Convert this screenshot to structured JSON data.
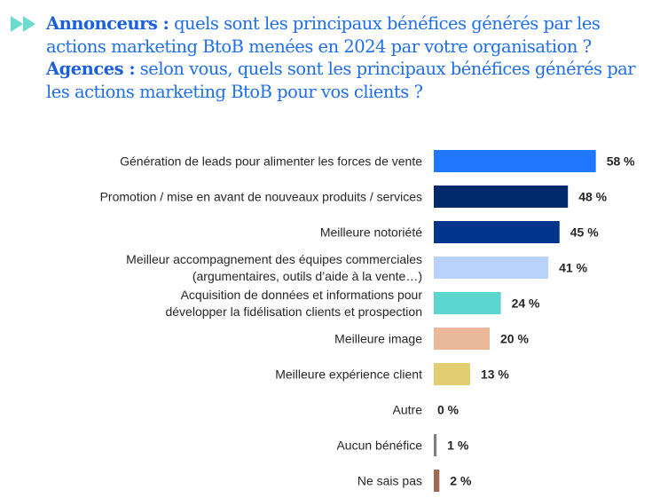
{
  "title": {
    "line1_bold": "Annonceurs :",
    "line1_rest": " quels sont les principaux bénéfices générés par les actions marketing BtoB menées en 2024 par votre organisation ?",
    "line2_bold": "Agences :",
    "line2_rest": " selon vous, quels sont les principaux bénéfices générés par les actions marketing BtoB pour vos clients ?",
    "icon": "double-chevron-right-icon"
  },
  "chart_data": {
    "type": "bar",
    "orientation": "horizontal",
    "title": "Annonceurs : quels sont les principaux bénéfices générés par les actions marketing BtoB menées en 2024 par votre organisation ? Agences : selon vous, quels sont les principaux bénéfices générés par les actions marketing BtoB pour vos clients ?",
    "xlabel": "",
    "ylabel": "",
    "unit": "%",
    "xlim": [
      0,
      60
    ],
    "grid": false,
    "legend": "none",
    "categories": [
      [
        "Génération de leads pour alimenter les forces de vente"
      ],
      [
        "Promotion / mise en avant de nouveaux produits / services"
      ],
      [
        "Meilleure notoriété"
      ],
      [
        "Meilleur accompagnement des équipes commerciales",
        "(argumentaires, outils d’aide à la vente…)"
      ],
      [
        "Acquisition de données et informations pour",
        "développer la fidélisation clients et prospection"
      ],
      [
        "Meilleure image"
      ],
      [
        "Meilleure expérience client"
      ],
      [
        "Autre"
      ],
      [
        "Aucun bénéfice"
      ],
      [
        "Ne sais pas"
      ]
    ],
    "values": [
      58,
      48,
      45,
      41,
      24,
      20,
      13,
      0,
      1,
      2
    ],
    "value_labels": [
      "58 %",
      "48 %",
      "45 %",
      "41 %",
      "24 %",
      "20 %",
      "13 %",
      "0 %",
      "1 %",
      "2 %"
    ],
    "colors": [
      "#1f78ff",
      "#002a6b",
      "#00358c",
      "#b8d2fb",
      "#5ad6cf",
      "#eab89b",
      "#e2ce72",
      "#bfbfbf",
      "#808080",
      "#a0694f"
    ]
  }
}
